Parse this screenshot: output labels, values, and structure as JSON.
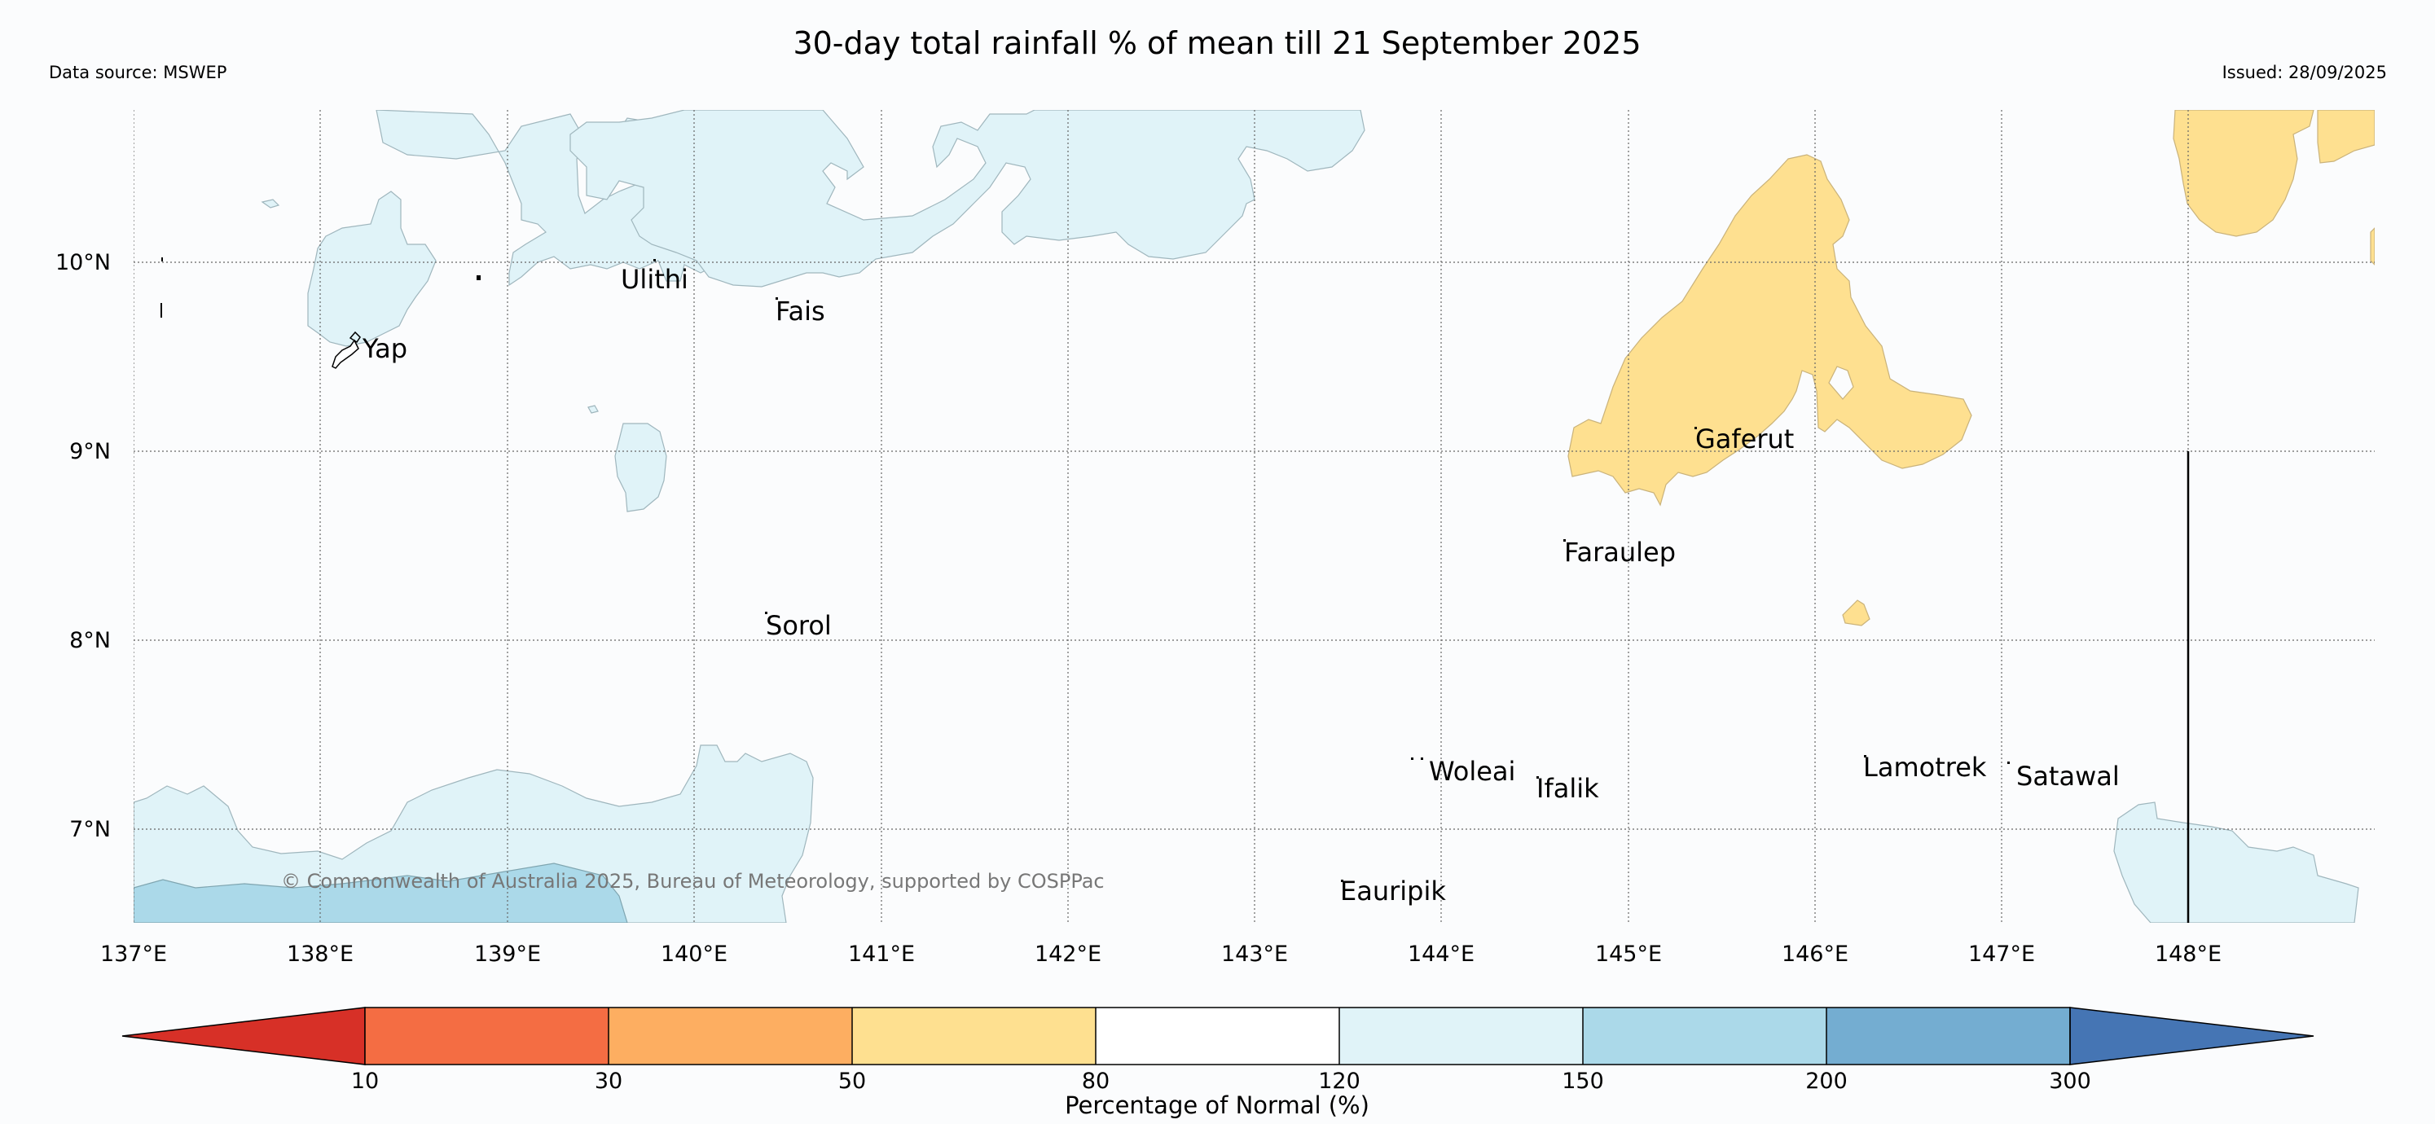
{
  "title": "30-day total rainfall % of mean till 21 September 2025",
  "source": "Data source: MSWEP",
  "issued": "Issued: 28/09/2025",
  "copyright": "© Commonwealth of Australia 2025, Bureau of Meteorology, supported by COSPPac",
  "lon_labels": [
    "137°E",
    "138°E",
    "139°E",
    "140°E",
    "141°E",
    "142°E",
    "143°E",
    "144°E",
    "145°E",
    "146°E",
    "147°E",
    "148°E"
  ],
  "lat_labels": [
    "10°N",
    "9°N",
    "8°N",
    "7°N"
  ],
  "places": [
    {
      "name": "Ulithi"
    },
    {
      "name": "Fais"
    },
    {
      "name": "Yap"
    },
    {
      "name": "Gaferut"
    },
    {
      "name": "Faraulep"
    },
    {
      "name": "Sorol"
    },
    {
      "name": "Woleai"
    },
    {
      "name": "Ifalik"
    },
    {
      "name": "Lamotrek"
    },
    {
      "name": "Satawal"
    },
    {
      "name": "Eauripik"
    }
  ],
  "colorbar": {
    "label": "Percentage of Normal (%)",
    "ticks": [
      "10",
      "30",
      "50",
      "80",
      "120",
      "150",
      "200",
      "300"
    ],
    "colors": [
      "#d73027",
      "#f46d43",
      "#fdae61",
      "#fee090",
      "#ffffff",
      "#e0f3f8",
      "#abd9e9",
      "#74add1",
      "#4575b4"
    ]
  },
  "legend_colors": {
    "yellow": "#fee090",
    "light_blue": "#e0f3f8",
    "mid_blue": "#abd9e9"
  }
}
